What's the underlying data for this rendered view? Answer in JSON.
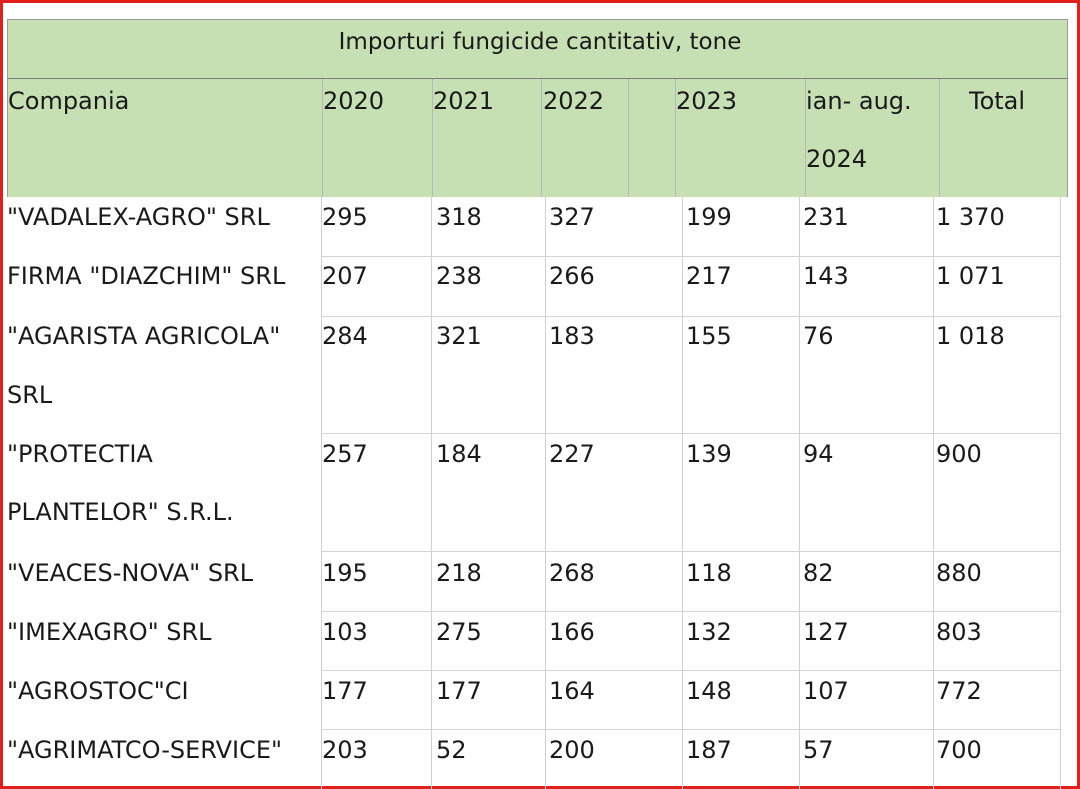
{
  "title": "Importuri fungicide cantitativ, tone",
  "columns": {
    "company": "Compania",
    "y2020": "2020",
    "y2021": "2021",
    "y2022": "2022",
    "y2023": "2023",
    "partial_line1": "ian- aug.",
    "partial_line2": "2024",
    "total": "Total"
  },
  "rows": [
    {
      "company": "\"VADALEX-AGRO\" SRL",
      "company2": "",
      "y2020": "295",
      "y2021": "318",
      "y2022": "327",
      "y2023": "199",
      "partial": "231",
      "total": "1 370"
    },
    {
      "company": "FIRMA \"DIAZCHIM\" SRL",
      "company2": "",
      "y2020": "207",
      "y2021": "238",
      "y2022": "266",
      "y2023": "217",
      "partial": "143",
      "total": "1 071"
    },
    {
      "company": "\"AGARISTA   AGRICOLA\"",
      "company2": "SRL",
      "y2020": "284",
      "y2021": "321",
      "y2022": "183",
      "y2023": "155",
      "partial": "76",
      "total": "1 018"
    },
    {
      "company": "\"PROTECTIA",
      "company2": "PLANTELOR\" S.R.L.",
      "y2020": "257",
      "y2021": "184",
      "y2022": "227",
      "y2023": "139",
      "partial": "94",
      "total": "900"
    },
    {
      "company": "\"VEACES-NOVA\" SRL",
      "company2": "",
      "y2020": "195",
      "y2021": "218",
      "y2022": "268",
      "y2023": "118",
      "partial": "82",
      "total": "880"
    },
    {
      "company": "\"IMEXAGRO\" SRL",
      "company2": "",
      "y2020": "103",
      "y2021": "275",
      "y2022": "166",
      "y2023": "132",
      "partial": "127",
      "total": "803"
    },
    {
      "company": "\"AGROSTOC\"CI",
      "company2": "",
      "y2020": "177",
      "y2021": "177",
      "y2022": "164",
      "y2023": "148",
      "partial": "107",
      "total": "772"
    },
    {
      "company": "\"AGRIMATCO-SERVICE\"",
      "company2": "",
      "y2020": "203",
      "y2021": "52",
      "y2022": "200",
      "y2023": "187",
      "partial": "57",
      "total": "700"
    }
  ],
  "colors": {
    "header_bg": "#c6e0b4",
    "frame": "#e0201c"
  }
}
